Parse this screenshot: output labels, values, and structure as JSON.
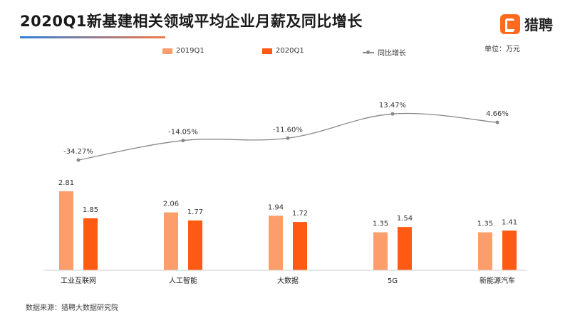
{
  "header": {
    "title": "2020Q1新基建相关领域平均企业月薪及同比增长",
    "logo_text": "猎聘",
    "logo_icon": "liepin-logo-icon",
    "unit": "单位：万元"
  },
  "footer": {
    "source": "数据来源：猎聘大数据研究院"
  },
  "colors": {
    "q2019": "#fb9e6c",
    "q2020": "#ff5a14",
    "growth_line": "#888888"
  },
  "chart_data": {
    "type": "bar",
    "categories": [
      "工业互联网",
      "人工智能",
      "大数据",
      "5G",
      "新能源汽车"
    ],
    "series": [
      {
        "name": "2019Q1",
        "type": "bar",
        "values": [
          2.81,
          2.06,
          1.94,
          1.35,
          1.35
        ],
        "labels": [
          "2.81",
          "2.06",
          "1.94",
          "1.35",
          "1.35"
        ]
      },
      {
        "name": "2020Q1",
        "type": "bar",
        "values": [
          1.85,
          1.77,
          1.72,
          1.54,
          1.41
        ],
        "labels": [
          "1.85",
          "1.77",
          "1.72",
          "1.54",
          "1.41"
        ]
      },
      {
        "name": "同比增长",
        "type": "line",
        "values": [
          -34.27,
          -14.05,
          -11.6,
          13.47,
          4.66
        ],
        "labels": [
          "-34.27%",
          "-14.05%",
          "-11.60%",
          "13.47%",
          "4.66%"
        ]
      }
    ],
    "legend": [
      "2019Q1",
      "2020Q1",
      "同比增长"
    ],
    "legend_position": "top",
    "grid": false
  }
}
